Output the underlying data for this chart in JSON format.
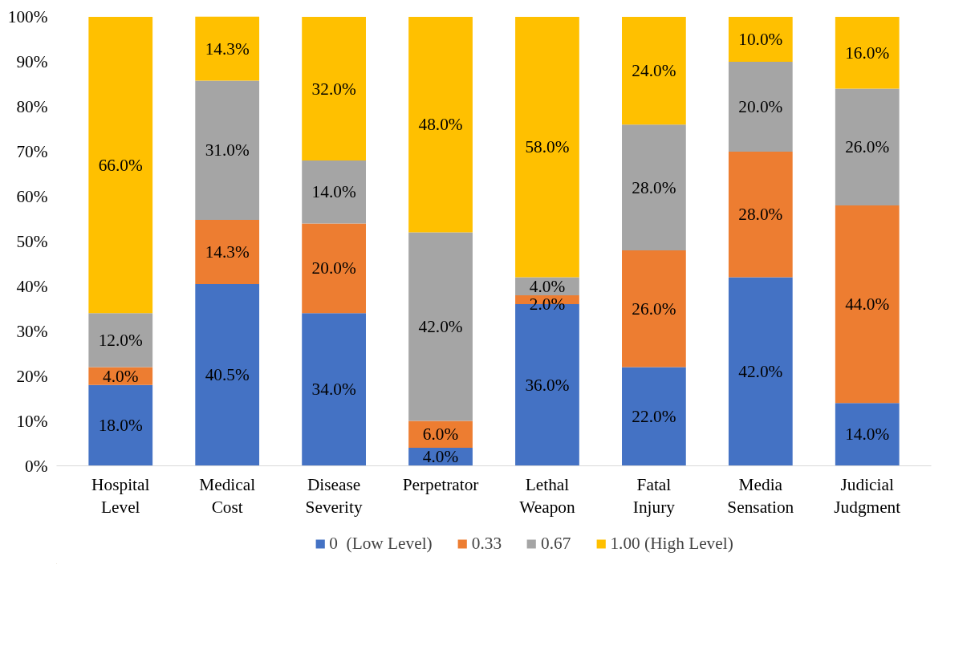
{
  "chart_data": {
    "type": "bar",
    "stacked": true,
    "categories": [
      "Hospital\nLevel",
      "Medical\nCost",
      "Disease\nSeverity",
      "Perpetrator",
      "Lethal\nWeapon",
      "Fatal\nInjury",
      "Media\nSensation",
      "Judicial\nJudgment"
    ],
    "series": [
      {
        "name": "0  (Low Level)",
        "color": "#4472c4",
        "values": [
          18,
          40.5,
          34,
          4,
          36,
          22,
          42,
          14
        ],
        "value_labels": [
          "18.0%",
          "40.5%",
          "34.0%",
          "4.0%",
          "36.0%",
          "22.0%",
          "42.0%",
          "14.0%"
        ]
      },
      {
        "name": "0.33",
        "color": "#ed7d31",
        "values": [
          4,
          14.3,
          20,
          6,
          2,
          26,
          28,
          44
        ],
        "value_labels": [
          "4.0%",
          "14.3%",
          "20.0%",
          "6.0%",
          "2.0%",
          "26.0%",
          "28.0%",
          "44.0%"
        ]
      },
      {
        "name": "0.67",
        "color": "#a5a5a5",
        "values": [
          12,
          31,
          14,
          42,
          4,
          28,
          20,
          26
        ],
        "value_labels": [
          "12.0%",
          "31.0%",
          "14.0%",
          "42.0%",
          "4.0%",
          "28.0%",
          "20.0%",
          "26.0%"
        ]
      },
      {
        "name": "1.00 (High Level)",
        "color": "#ffc000",
        "values": [
          66,
          14.3,
          32,
          48,
          58,
          24,
          10,
          16
        ],
        "value_labels": [
          "66.0%",
          "14.3%",
          "32.0%",
          "48.0%",
          "58.0%",
          "24.0%",
          "10.0%",
          "16.0%"
        ]
      }
    ],
    "ylim": [
      0,
      100.1
    ],
    "yticks": [
      {
        "value": 0,
        "label": "0%"
      },
      {
        "value": 10,
        "label": "10%"
      },
      {
        "value": 20,
        "label": "20%"
      },
      {
        "value": 30,
        "label": "30%"
      },
      {
        "value": 40,
        "label": "40%"
      },
      {
        "value": 50,
        "label": "50%"
      },
      {
        "value": 60,
        "label": "60%"
      },
      {
        "value": 70,
        "label": "70%"
      },
      {
        "value": 80,
        "label": "80%"
      },
      {
        "value": 90,
        "label": "90%"
      },
      {
        "value": 100,
        "label": "100%"
      }
    ],
    "grid": false,
    "legend": "bottom"
  }
}
